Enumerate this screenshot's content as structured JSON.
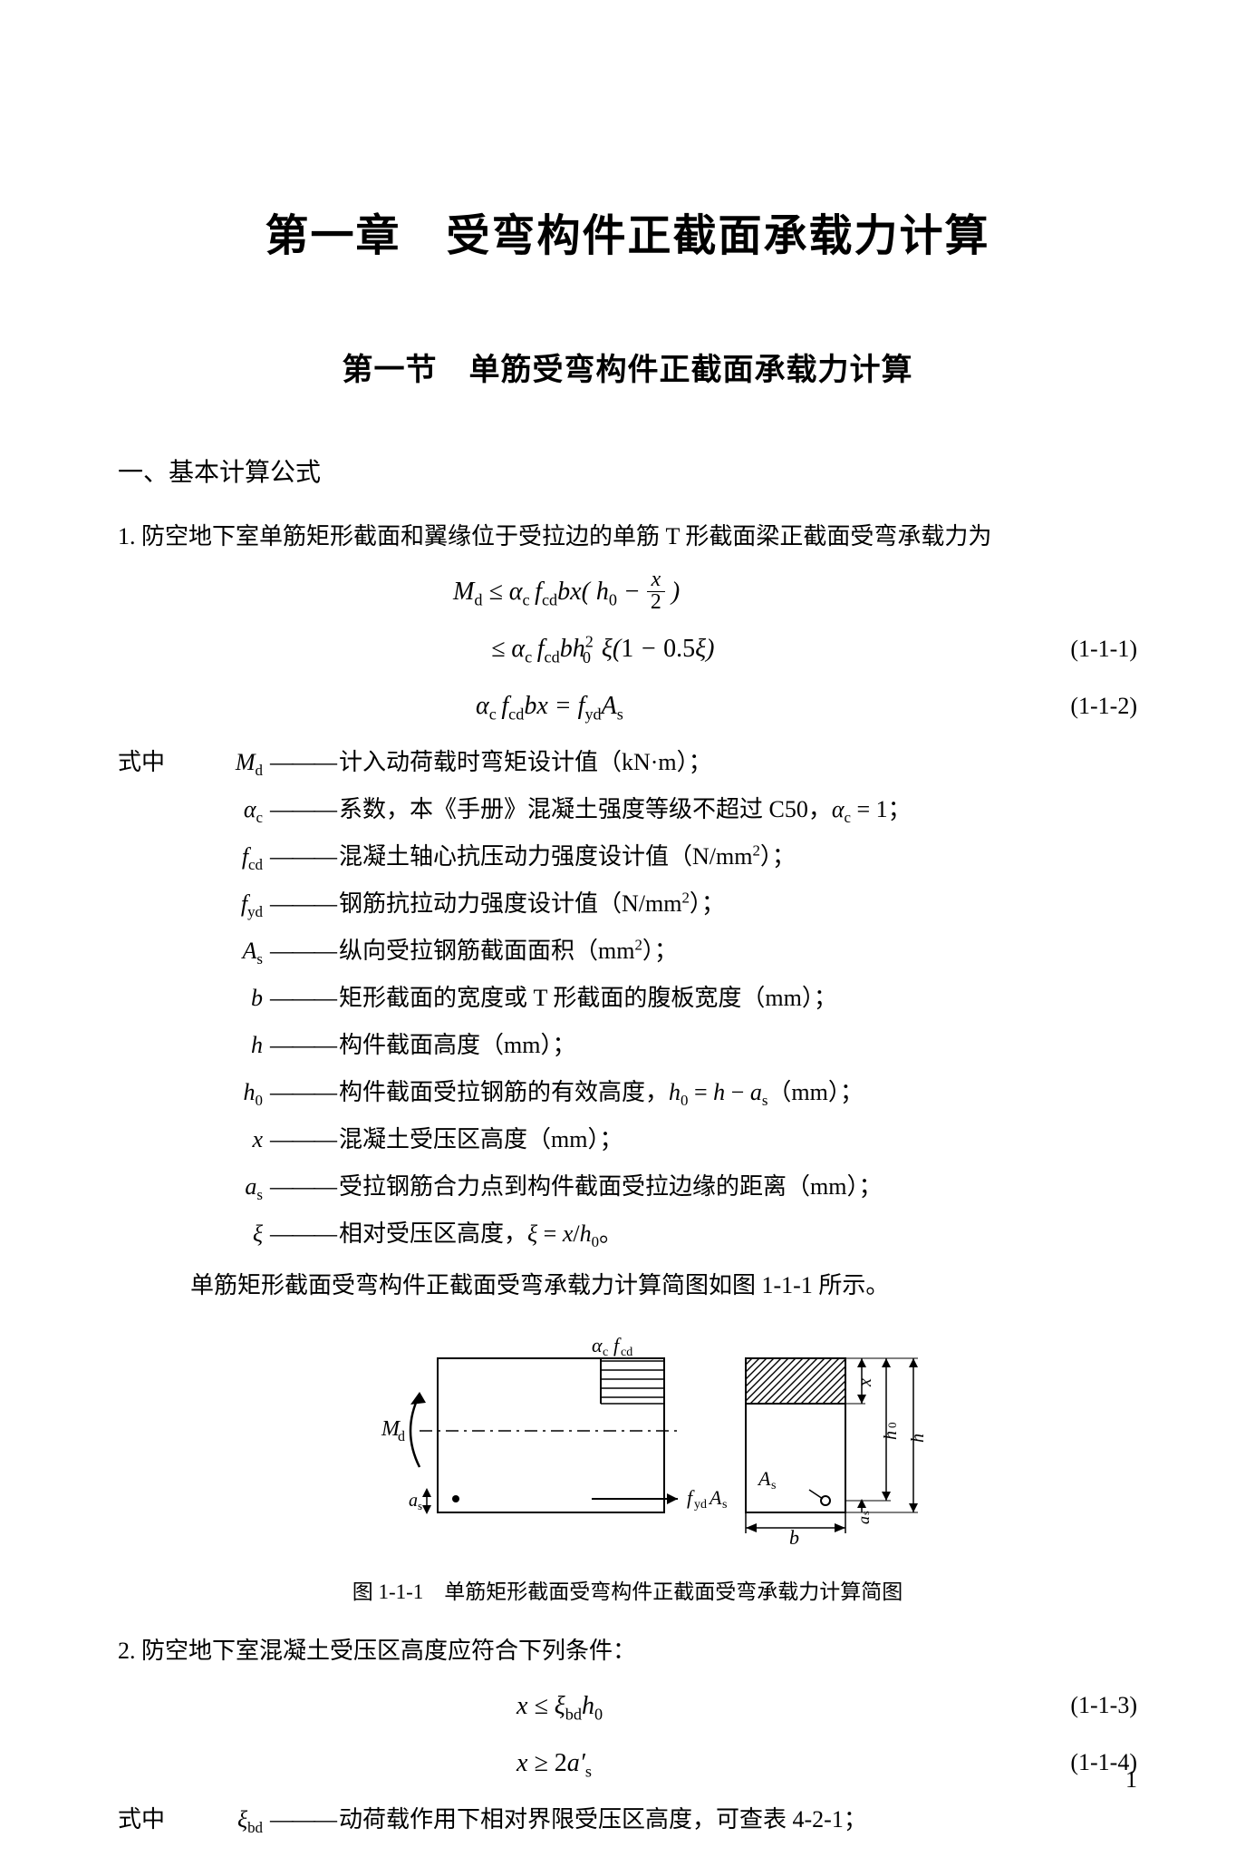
{
  "page_number": "1",
  "chapter_title": "第一章　受弯构件正截面承载力计算",
  "section_title": "第一节　单筋受弯构件正截面承载力计算",
  "subsection_title": "一、基本计算公式",
  "item1_text": "1. 防空地下室单筋矩形截面和翼缘位于受拉边的单筋 T 形截面梁正截面受弯承载力为",
  "eq1_num": "(1-1-1)",
  "eq2_num": "(1-1-2)",
  "eq3_num": "(1-1-3)",
  "eq4_num": "(1-1-4)",
  "def_prefix": "式中",
  "defs": [
    {
      "sym": "M<sub>d</sub>",
      "text": "计入动荷载时弯矩设计值（kN·m）；"
    },
    {
      "sym": "α<sub>c</sub>",
      "text": "系数，本《手册》混凝土强度等级不超过 C50，<i>α</i><sub>c</sub> = 1；"
    },
    {
      "sym": "f<sub>cd</sub>",
      "text": "混凝土轴心抗压动力强度设计值（N/mm<sup>2</sup>）；"
    },
    {
      "sym": "f<sub>yd</sub>",
      "text": "钢筋抗拉动力强度设计值（N/mm<sup>2</sup>）；"
    },
    {
      "sym": "A<sub>s</sub>",
      "text": "纵向受拉钢筋截面面积（mm<sup>2</sup>）；"
    },
    {
      "sym": "b",
      "text": "矩形截面的宽度或 T 形截面的腹板宽度（mm）；"
    },
    {
      "sym": "h",
      "text": "构件截面高度（mm）；"
    },
    {
      "sym": "h<sub>0</sub>",
      "text": "构件截面受拉钢筋的有效高度，<i>h</i><sub>0</sub> = <i>h</i> − <i>a</i><sub>s</sub>（mm）；"
    },
    {
      "sym": "x",
      "text": "混凝土受压区高度（mm）；"
    },
    {
      "sym": "a<sub>s</sub>",
      "text": "受拉钢筋合力点到构件截面受拉边缘的距离（mm）；"
    },
    {
      "sym": "ξ",
      "text": "相对受压区高度，<i>ξ</i> = <i>x</i>/<i>h</i><sub>0</sub>。"
    }
  ],
  "fig_ref": "单筋矩形截面受弯构件正截面受弯承载力计算简图如图 1-1-1 所示。",
  "fig_caption": "图 1-1-1　单筋矩形截面受弯构件正截面受弯承载力计算简图",
  "item2_text": "2. 防空地下室混凝土受压区高度应符合下列条件：",
  "def2_prefix": "式中",
  "def2_sym": "ξ<sub>bd</sub>",
  "def2_text": "动荷载作用下相对界限受压区高度，可查表 4-2-1；",
  "diagram": {
    "type": "engineering-diagram",
    "stroke": "#000000",
    "stroke_width": 2,
    "hatch_spacing": 7,
    "labels": {
      "Md": "M_d",
      "alpha_fcd": "α_c f_cd",
      "fyd_As": "f_yd A_s",
      "As": "A_s",
      "b": "b",
      "h": "h",
      "h0": "h_0",
      "x": "x",
      "as": "a_s"
    }
  }
}
